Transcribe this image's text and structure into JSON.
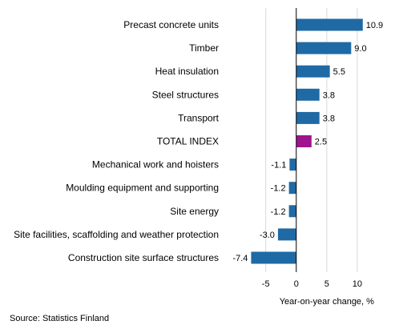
{
  "chart_data": {
    "type": "bar",
    "orientation": "horizontal",
    "categories": [
      "Precast concrete units",
      "Timber",
      "Heat insulation",
      "Steel structures",
      "Transport",
      "TOTAL INDEX",
      "Mechanical work and hoisters",
      "Moulding equipment and supporting",
      "Site energy",
      "Site facilities, scaffolding and weather protection",
      "Construction site surface structures"
    ],
    "values": [
      10.9,
      9.0,
      5.5,
      3.8,
      3.8,
      2.5,
      -1.1,
      -1.2,
      -1.2,
      -3.0,
      -7.4
    ],
    "value_labels": [
      "10.9",
      "9.0",
      "5.5",
      "3.8",
      "3.8",
      "2.5",
      "-1.1",
      "-1.2",
      "-1.2",
      "-3.0",
      "-7.4"
    ],
    "highlight_category": "TOTAL INDEX",
    "xlabel": "Year-on-year change, %",
    "ylabel": "",
    "xlim": [
      -11,
      15
    ],
    "xticks": [
      -5,
      0,
      5,
      10
    ],
    "xtick_labels": [
      "-5",
      "0",
      "5",
      "10"
    ],
    "grid": "vertical",
    "colors": {
      "bar": "#1f6aa5",
      "highlight": "#a0138e",
      "grid": "#d9d9d9",
      "axis": "#000000"
    }
  },
  "source": "Source: Statistics Finland"
}
